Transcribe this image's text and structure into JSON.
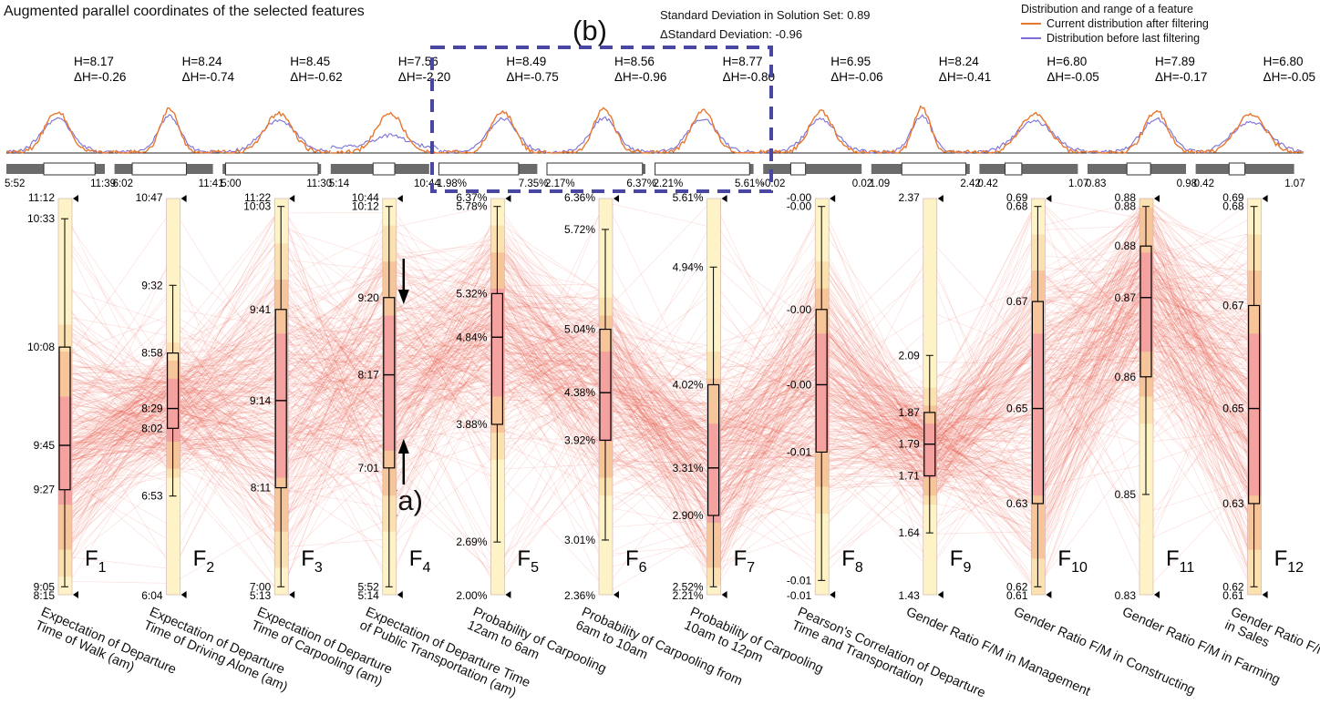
{
  "title": "Augmented parallel coordinates of the selected features",
  "std_dev": "Standard Deviation in Solution Set: 0.89",
  "delta_std": "ΔStandard Deviation: -0.96",
  "legend": {
    "heading": "Distribution and range of a feature",
    "items": [
      {
        "label": "Current distribution after filtering",
        "color": "#e8772f"
      },
      {
        "label": "Distribution before last filtering",
        "color": "#7b6fd6"
      }
    ]
  },
  "panel_labels": {
    "a": "(a)",
    "b": "(b)"
  },
  "colors": {
    "line": "#e8472f",
    "box_fill": "#fdf3c7",
    "highlight": "#4a47a3",
    "bar": "#6b6b6b"
  },
  "chart_data": {
    "type": "parallel_coordinates",
    "features": [
      {
        "id": "F",
        "sub": "1",
        "name": [
          "Expectation of Departure",
          "Time of Walk (am)"
        ],
        "H": "H=8.17",
        "dH": "ΔH=-0.26",
        "range": [
          "5:52",
          "11:39"
        ],
        "axis_top": "11:12",
        "axis_bottom": "8:15",
        "ticks": [
          "10:33",
          "10:08",
          "9:45",
          "9:27",
          "9:05"
        ]
      },
      {
        "id": "F",
        "sub": "2",
        "name": [
          "Expectation of Departure",
          "Time of Driving Alone (am)"
        ],
        "H": "H=8.24",
        "dH": "ΔH=-0.74",
        "range": [
          "6:02",
          "11:41"
        ],
        "axis_top": "10:47",
        "axis_bottom": "6:04",
        "ticks": [
          "9:32",
          "8:58",
          "8:29",
          "8:02",
          "6:53"
        ]
      },
      {
        "id": "F",
        "sub": "3",
        "name": [
          "Expectation of Departure",
          "Time of Carpooling (am)"
        ],
        "H": "H=8.45",
        "dH": "ΔH=-0.62",
        "range": [
          "5:00",
          "11:30"
        ],
        "axis_top": "11:22",
        "axis_bottom": "5:13",
        "ticks": [
          "10:03",
          "9:41",
          "9:14",
          "8:11",
          "7:00"
        ]
      },
      {
        "id": "F",
        "sub": "4",
        "name": [
          "Expectation of Departure Time",
          "of Public Transportation (am)"
        ],
        "H": "H=7.56",
        "dH": "ΔH=-2.20",
        "range": [
          "5:14",
          "10:44"
        ],
        "axis_top": "10:44",
        "axis_bottom": "5:14",
        "ticks": [
          "10:12",
          "9:20",
          "8:17",
          "7:01",
          "5:52"
        ]
      },
      {
        "id": "F",
        "sub": "5",
        "name": [
          "Probability of Carpooling",
          "12am to 6am"
        ],
        "H": "H=8.49",
        "dH": "ΔH=-0.75",
        "range": [
          "1.98%",
          "7.35%"
        ],
        "axis_top": "6.37%",
        "axis_bottom": "2.00%",
        "ticks": [
          "5.78%",
          "5.32%",
          "4.84%",
          "3.88%",
          "2.69%"
        ]
      },
      {
        "id": "F",
        "sub": "6",
        "name": [
          "Probability of Carpooling from",
          "6am to 10am"
        ],
        "H": "H=8.56",
        "dH": "ΔH=-0.96",
        "range": [
          "2.17%",
          "6.37%"
        ],
        "axis_top": "6.36%",
        "axis_bottom": "2.36%",
        "ticks": [
          "5.72%",
          "5.04%",
          "4.38%",
          "3.92%",
          "3.01%"
        ]
      },
      {
        "id": "F",
        "sub": "7",
        "name": [
          "Probability of Carpooling",
          "10am to 12pm"
        ],
        "H": "H=8.77",
        "dH": "ΔH=-0.80",
        "range": [
          "2.21%",
          "5.61%"
        ],
        "axis_top": "5.61%",
        "axis_bottom": "2.21%",
        "ticks": [
          "4.94%",
          "4.02%",
          "3.31%",
          "2.90%",
          "2.52%"
        ]
      },
      {
        "id": "F",
        "sub": "8",
        "name": [
          "Pearson's Correlation of Departure",
          "Time and Transportation"
        ],
        "H": "H=6.95",
        "dH": "ΔH=-0.06",
        "range": [
          "-0.02",
          "0.02"
        ],
        "axis_top": "-0.00",
        "axis_bottom": "-0.01",
        "ticks": [
          "-0.00",
          "-0.00",
          "-0.00",
          "-0.01",
          "-0.01"
        ]
      },
      {
        "id": "F",
        "sub": "9",
        "name": [
          "Gender Ratio F/M in Management"
        ],
        "H": "H=8.24",
        "dH": "ΔH=-0.41",
        "range": [
          "1.09",
          "2.42"
        ],
        "axis_top": "2.37",
        "axis_bottom": "1.43",
        "ticks": [
          "2.09",
          "1.87",
          "1.79",
          "1.71",
          "1.64"
        ]
      },
      {
        "id": "F",
        "sub": "10",
        "name": [
          "Gender Ratio F/M in Constructing"
        ],
        "H": "H=6.80",
        "dH": "ΔH=-0.05",
        "range": [
          "0.42",
          "1.07"
        ],
        "axis_top": "0.69",
        "axis_bottom": "0.61",
        "ticks": [
          "0.68",
          "0.67",
          "0.65",
          "0.63",
          "0.62"
        ]
      },
      {
        "id": "F",
        "sub": "11",
        "name": [
          "Gender Ratio F/M in Farming"
        ],
        "H": "H=7.89",
        "dH": "ΔH=-0.17",
        "range": [
          "0.83",
          "0.98"
        ],
        "axis_top": "0.88",
        "axis_bottom": "0.83",
        "ticks": [
          "0.88",
          "0.88",
          "0.87",
          "0.86",
          "0.85"
        ]
      },
      {
        "id": "F",
        "sub": "12",
        "name": [
          "Gender Ratio F/M",
          "in Sales"
        ],
        "H": "H=6.80",
        "dH": "ΔH=-0.05",
        "range": [
          "0.42",
          "1.07"
        ],
        "axis_top": "0.69",
        "axis_bottom": "0.61",
        "ticks": [
          "0.68",
          "0.67",
          "0.65",
          "0.63",
          "0.62"
        ]
      }
    ],
    "box_fraction": [
      [
        0.375,
        0.623,
        0.735
      ],
      [
        0.39,
        0.53,
        0.58
      ],
      [
        0.28,
        0.51,
        0.73
      ],
      [
        0.25,
        0.445,
        0.68
      ],
      [
        0.24,
        0.35,
        0.57
      ],
      [
        0.33,
        0.49,
        0.61
      ],
      [
        0.47,
        0.68,
        0.8
      ],
      [
        0.28,
        0.47,
        0.64
      ],
      [
        0.54,
        0.62,
        0.7
      ],
      [
        0.26,
        0.53,
        0.77
      ],
      [
        0.12,
        0.25,
        0.45
      ],
      [
        0.27,
        0.53,
        0.77
      ]
    ],
    "range_fraction": [
      [
        0.38,
        0.9
      ],
      [
        0.18,
        0.73
      ],
      [
        0.03,
        0.97
      ],
      [
        0.43,
        0.65
      ],
      [
        0.0,
        0.81
      ],
      [
        0.0,
        0.97
      ],
      [
        0.0,
        0.96
      ],
      [
        0.28,
        0.43
      ],
      [
        0.31,
        0.96
      ],
      [
        0.26,
        0.43
      ],
      [
        0.4,
        0.64
      ],
      [
        0.34,
        0.5
      ]
    ]
  }
}
